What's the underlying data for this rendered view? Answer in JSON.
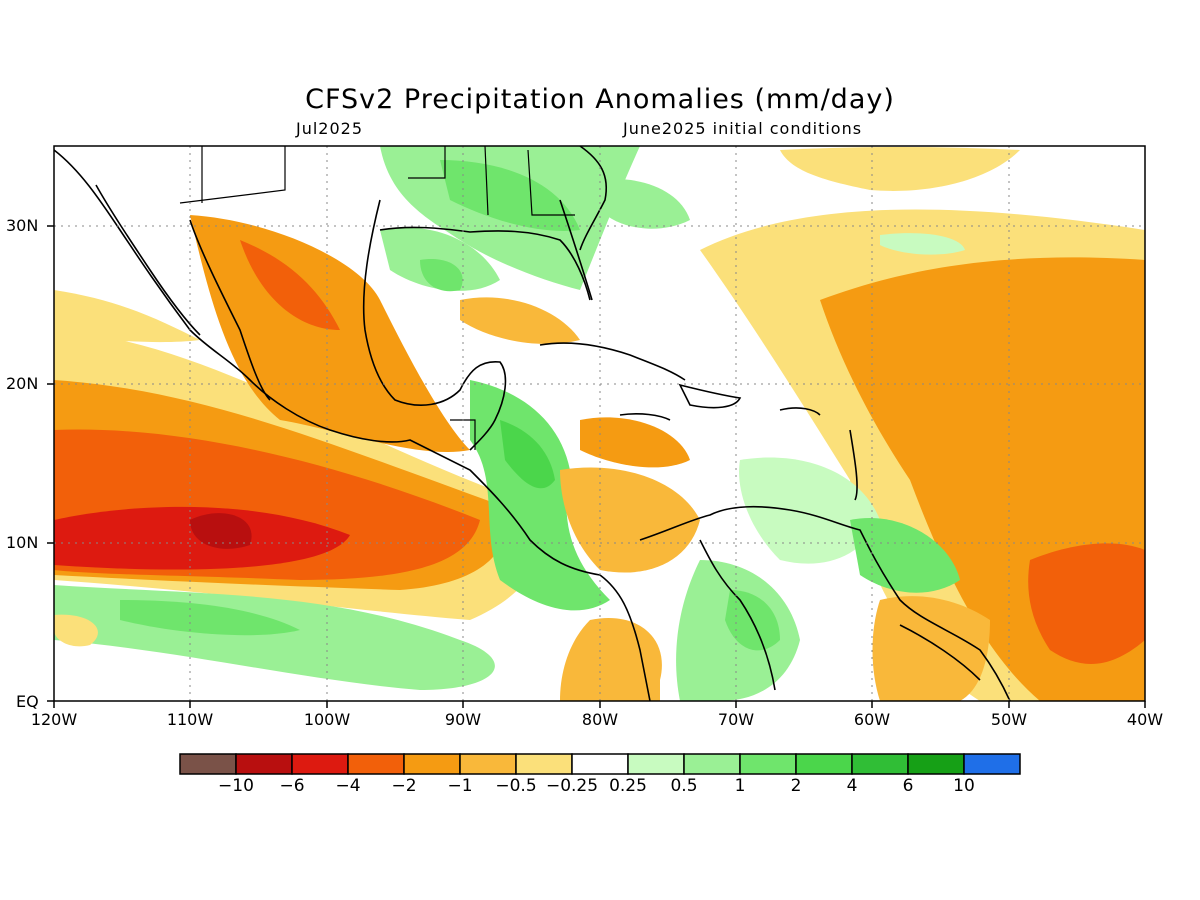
{
  "title": "CFSv2 Precipitation Anomalies (mm/day)",
  "subtitle_left": "Jul2025",
  "subtitle_right": "June2025 initial conditions",
  "axes": {
    "x_ticks": [
      "120W",
      "110W",
      "100W",
      "90W",
      "80W",
      "70W",
      "60W",
      "50W",
      "40W"
    ],
    "y_ticks": [
      "30N",
      "20N",
      "10N",
      "EQ"
    ]
  },
  "colorbar": {
    "colors": [
      "#7a5248",
      "#b80f0f",
      "#dd1a10",
      "#f2600a",
      "#f59b12",
      "#f9b83a",
      "#fbe07a",
      "#ffffff",
      "#c8fbc0",
      "#9af095",
      "#6fe56c",
      "#4bd64b",
      "#30be36",
      "#16a016",
      "#1f6fe8"
    ],
    "labels": [
      "−10",
      "−6",
      "−4",
      "−2",
      "−1",
      "−0.5",
      "−0.25",
      "0.25",
      "0.5",
      "1",
      "2",
      "4",
      "6",
      "10"
    ]
  },
  "legend_colors": {
    "strong_dry": "#b80f0f",
    "dry": "#f2600a",
    "moderate_dry": "#f59b12",
    "light_dry": "#f9b83a",
    "very_light_dry": "#fbe07a",
    "very_light_wet": "#c8fbc0",
    "light_wet": "#9af095",
    "wet": "#6fe56c",
    "strong_wet": "#4bd64b"
  }
}
